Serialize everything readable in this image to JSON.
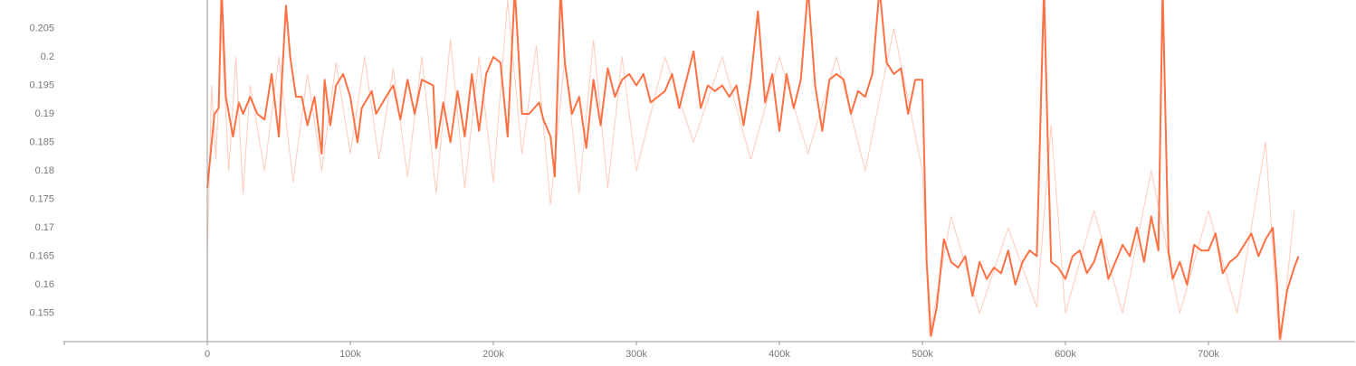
{
  "chart_data": {
    "type": "line",
    "xlim": [
      -100000,
      800000
    ],
    "xticks": [
      {
        "value": -100000,
        "label": ""
      },
      0,
      {
        "value": 100000,
        "label": "100k"
      },
      {
        "value": 200000,
        "label": "200k"
      },
      {
        "value": 300000,
        "label": "300k"
      },
      {
        "value": 400000,
        "label": "400k"
      },
      {
        "value": 500000,
        "label": "500k"
      },
      {
        "value": 600000,
        "label": "600k"
      },
      {
        "value": 700000,
        "label": "700k"
      }
    ],
    "ylim": [
      0.15,
      0.21
    ],
    "yticks": [
      0.155,
      0.16,
      0.165,
      0.17,
      0.175,
      0.18,
      0.185,
      0.19,
      0.195,
      0.2,
      0.205
    ],
    "grid": false,
    "series": [
      {
        "color": "#ffccbc",
        "x": [
          0,
          3000,
          6000,
          10000,
          15000,
          20000,
          25000,
          30000,
          40000,
          50000,
          60000,
          70000,
          80000,
          90000,
          100000,
          110000,
          120000,
          130000,
          140000,
          150000,
          160000,
          170000,
          180000,
          190000,
          200000,
          210000,
          220000,
          230000,
          240000,
          250000,
          260000,
          270000,
          280000,
          290000,
          300000,
          320000,
          340000,
          360000,
          380000,
          400000,
          420000,
          440000,
          460000,
          480000,
          500000,
          505000,
          520000,
          540000,
          560000,
          580000,
          590000,
          600000,
          620000,
          640000,
          660000,
          680000,
          700000,
          720000,
          740000,
          750000,
          760000
        ],
        "values": [
          0.165,
          0.195,
          0.182,
          0.205,
          0.18,
          0.2,
          0.176,
          0.195,
          0.18,
          0.2,
          0.178,
          0.197,
          0.18,
          0.199,
          0.183,
          0.2,
          0.182,
          0.198,
          0.179,
          0.2,
          0.176,
          0.203,
          0.177,
          0.2,
          0.178,
          0.21,
          0.183,
          0.202,
          0.174,
          0.2,
          0.176,
          0.203,
          0.177,
          0.2,
          0.18,
          0.2,
          0.185,
          0.2,
          0.182,
          0.2,
          0.183,
          0.2,
          0.18,
          0.205,
          0.18,
          0.151,
          0.172,
          0.155,
          0.17,
          0.156,
          0.188,
          0.155,
          0.173,
          0.155,
          0.18,
          0.155,
          0.173,
          0.155,
          0.185,
          0.148,
          0.173
        ]
      },
      {
        "color": "#ff7043",
        "x": [
          0,
          5000,
          8000,
          10000,
          13000,
          18000,
          22000,
          25000,
          30000,
          35000,
          40000,
          45000,
          50000,
          55000,
          58000,
          62000,
          66000,
          70000,
          75000,
          80000,
          82000,
          86000,
          90000,
          95000,
          100000,
          105000,
          108000,
          115000,
          118000,
          125000,
          130000,
          135000,
          140000,
          145000,
          150000,
          158000,
          160000,
          165000,
          170000,
          175000,
          180000,
          185000,
          190000,
          195000,
          200000,
          205000,
          210000,
          215000,
          220000,
          225000,
          232000,
          235000,
          240000,
          243000,
          247000,
          250000,
          255000,
          260000,
          265000,
          270000,
          275000,
          280000,
          285000,
          290000,
          295000,
          300000,
          305000,
          310000,
          315000,
          320000,
          325000,
          330000,
          335000,
          340000,
          345000,
          350000,
          355000,
          360000,
          365000,
          370000,
          375000,
          380000,
          385000,
          390000,
          395000,
          400000,
          405000,
          410000,
          415000,
          420000,
          425000,
          430000,
          435000,
          440000,
          445000,
          450000,
          455000,
          460000,
          465000,
          470000,
          475000,
          480000,
          485000,
          490000,
          495000,
          500000,
          503000,
          506000,
          510000,
          515000,
          520000,
          525000,
          530000,
          535000,
          540000,
          545000,
          550000,
          555000,
          560000,
          565000,
          570000,
          575000,
          580000,
          585000,
          588000,
          590000,
          595000,
          600000,
          605000,
          610000,
          615000,
          620000,
          625000,
          630000,
          635000,
          640000,
          645000,
          650000,
          655000,
          660000,
          665000,
          668000,
          672000,
          675000,
          680000,
          685000,
          690000,
          695000,
          700000,
          705000,
          710000,
          715000,
          720000,
          725000,
          730000,
          735000,
          740000,
          745000,
          748000,
          750000,
          755000,
          760000,
          763000
        ],
        "values": [
          0.177,
          0.19,
          0.191,
          0.212,
          0.193,
          0.186,
          0.192,
          0.19,
          0.193,
          0.19,
          0.189,
          0.197,
          0.186,
          0.209,
          0.2,
          0.193,
          0.193,
          0.188,
          0.193,
          0.183,
          0.196,
          0.188,
          0.195,
          0.197,
          0.193,
          0.185,
          0.191,
          0.194,
          0.19,
          0.193,
          0.195,
          0.189,
          0.196,
          0.19,
          0.196,
          0.195,
          0.184,
          0.192,
          0.185,
          0.194,
          0.186,
          0.197,
          0.187,
          0.197,
          0.2,
          0.199,
          0.186,
          0.212,
          0.19,
          0.19,
          0.192,
          0.189,
          0.186,
          0.179,
          0.212,
          0.199,
          0.19,
          0.193,
          0.184,
          0.196,
          0.188,
          0.198,
          0.193,
          0.196,
          0.197,
          0.195,
          0.197,
          0.192,
          0.193,
          0.194,
          0.197,
          0.191,
          0.196,
          0.201,
          0.191,
          0.195,
          0.194,
          0.195,
          0.193,
          0.195,
          0.188,
          0.196,
          0.208,
          0.192,
          0.197,
          0.187,
          0.197,
          0.191,
          0.196,
          0.212,
          0.195,
          0.187,
          0.196,
          0.197,
          0.196,
          0.19,
          0.194,
          0.193,
          0.197,
          0.212,
          0.199,
          0.197,
          0.198,
          0.19,
          0.196,
          0.196,
          0.164,
          0.151,
          0.156,
          0.168,
          0.164,
          0.163,
          0.165,
          0.158,
          0.164,
          0.161,
          0.163,
          0.162,
          0.166,
          0.16,
          0.164,
          0.166,
          0.165,
          0.212,
          0.182,
          0.164,
          0.163,
          0.161,
          0.165,
          0.166,
          0.162,
          0.164,
          0.168,
          0.161,
          0.164,
          0.167,
          0.165,
          0.17,
          0.164,
          0.172,
          0.166,
          0.212,
          0.166,
          0.161,
          0.164,
          0.16,
          0.167,
          0.166,
          0.166,
          0.169,
          0.162,
          0.164,
          0.165,
          0.167,
          0.169,
          0.165,
          0.168,
          0.17,
          0.16,
          0.1505,
          0.159,
          0.163,
          0.165
        ]
      }
    ]
  }
}
